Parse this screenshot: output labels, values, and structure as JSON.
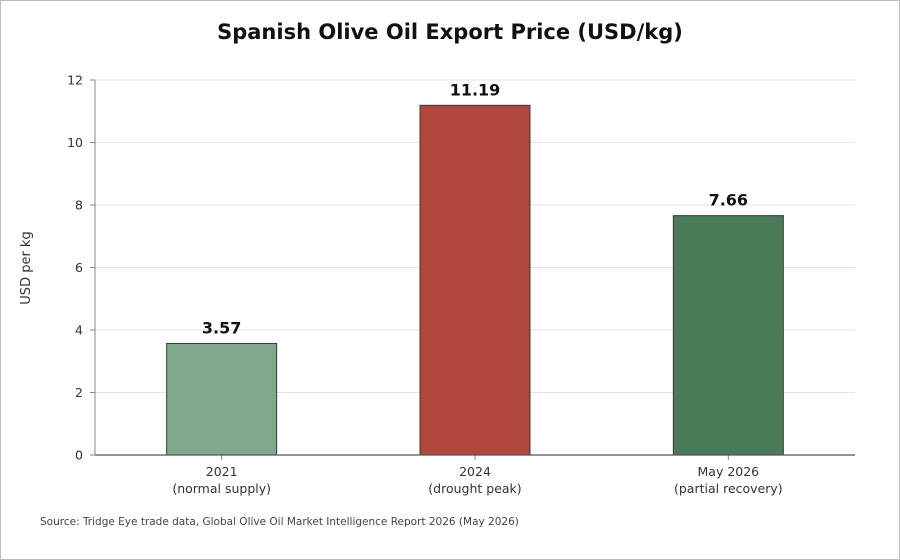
{
  "chart_data": {
    "type": "bar",
    "title": "Spanish Olive Oil Export Price (USD/kg)",
    "ylabel": "USD per kg",
    "xlabel": "",
    "ylim": [
      0,
      12
    ],
    "yticks": [
      0,
      2,
      4,
      6,
      8,
      10,
      12
    ],
    "grid": true,
    "categories": [
      [
        "2021",
        "(normal supply)"
      ],
      [
        "2024",
        "(drought peak)"
      ],
      [
        "May 2026",
        "(partial recovery)"
      ]
    ],
    "values": [
      3.57,
      11.19,
      7.66
    ],
    "value_labels": [
      "3.57",
      "11.19",
      "7.66"
    ],
    "colors": [
      "#7fa98a",
      "#b0473b",
      "#4a7b59"
    ]
  },
  "source": "Source: Tridge Eye trade data, Global Olive Oil Market Intelligence Report 2026 (May 2026)"
}
